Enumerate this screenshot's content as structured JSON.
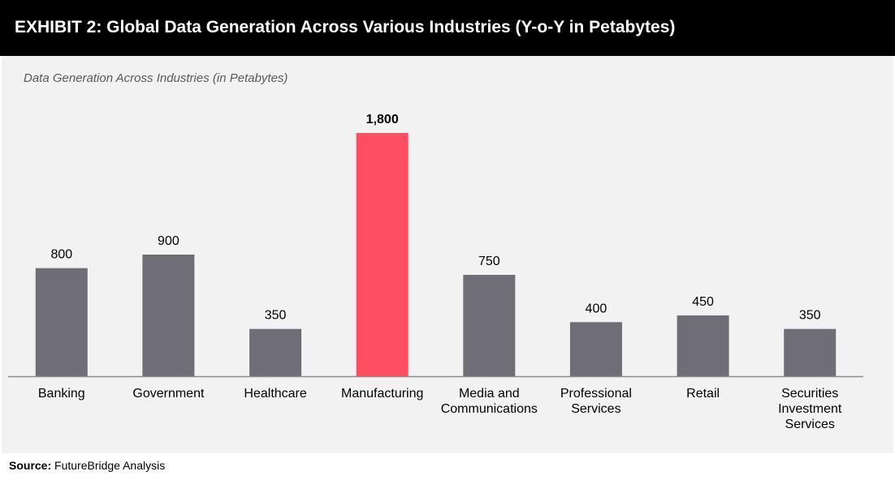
{
  "header": {
    "title": "EXHIBIT 2: Global Data Generation Across Various Industries (Y-o-Y in Petabytes)"
  },
  "source": {
    "label": "Source:",
    "text": "FutureBridge Analysis"
  },
  "colors": {
    "header_bg": "#000000",
    "panel_bg": "#f2f2f2",
    "bar_default": "#6f6e77",
    "bar_highlight": "#fd4f61",
    "axis": "#8c8c8c"
  },
  "chart_data": {
    "type": "bar",
    "title": "Data Generation Across Industries (in Petabytes)",
    "xlabel": "",
    "ylabel": "",
    "ylim": [
      0,
      1800
    ],
    "grid": false,
    "legend": "none",
    "highlight_category": "Manufacturing",
    "categories": [
      "Banking",
      "Government",
      "Healthcare",
      "Manufacturing",
      "Media and Communications",
      "Professional Services",
      "Retail",
      "Securities Investment Services"
    ],
    "category_label_lines": [
      [
        "Banking"
      ],
      [
        "Government"
      ],
      [
        "Healthcare"
      ],
      [
        "Manufacturing"
      ],
      [
        "Media and",
        "Communications"
      ],
      [
        "Professional",
        "Services"
      ],
      [
        "Retail"
      ],
      [
        "Securities",
        "Investment",
        "Services"
      ]
    ],
    "values": [
      800,
      900,
      350,
      1800,
      750,
      400,
      450,
      350
    ],
    "value_labels": [
      "800",
      "900",
      "350",
      "1,800",
      "750",
      "400",
      "450",
      "350"
    ]
  }
}
